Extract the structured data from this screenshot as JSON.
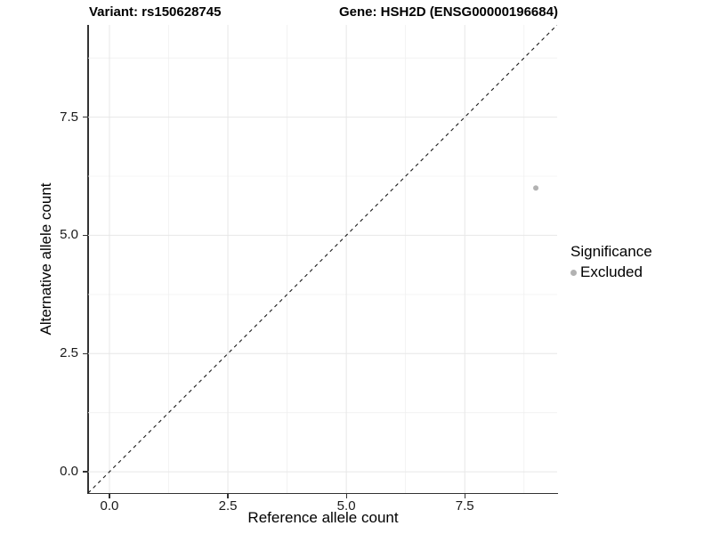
{
  "header": {
    "variant_title": "Variant: rs150628745",
    "gene_title": "Gene: HSH2D (ENSG00000196684)"
  },
  "chart_data": {
    "type": "scatter",
    "title": "Variant: rs150628745 — Gene: HSH2D (ENSG00000196684)",
    "xlabel": "Reference allele count",
    "ylabel": "Alternative allele count",
    "xlim": [
      -0.45,
      9.45
    ],
    "ylim": [
      -0.45,
      9.45
    ],
    "x_ticks": [
      0,
      2.5,
      5,
      7.5
    ],
    "x_tick_labels": [
      "0.0",
      "2.5",
      "5.0",
      "7.5"
    ],
    "y_ticks": [
      0,
      2.5,
      5,
      7.5
    ],
    "y_tick_labels": [
      "0.0",
      "2.5",
      "5.0",
      "7.5"
    ],
    "minor_ticks": [
      1.25,
      3.75,
      6.25,
      8.75
    ],
    "grid": true,
    "reference_line": {
      "type": "identity",
      "style": "dashed",
      "from": [
        -0.45,
        -0.45
      ],
      "to": [
        9.45,
        9.45
      ]
    },
    "series": [
      {
        "name": "Excluded",
        "color": "#b2b2b2",
        "points": [
          {
            "x": 9,
            "y": 6
          }
        ]
      }
    ],
    "legend": {
      "title": "Significance",
      "position": "right",
      "entries": [
        {
          "label": "Excluded",
          "color": "#b2b2b2"
        }
      ]
    }
  },
  "colors": {
    "background": "#ffffff",
    "point": "#b2b2b2",
    "grid_major": "#e7e7e7",
    "grid_minor": "#f0f0f0",
    "axis": "#333333",
    "dashed_line": "#1a1a1a",
    "text": "#000000"
  }
}
